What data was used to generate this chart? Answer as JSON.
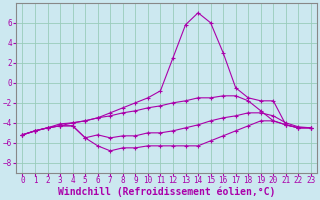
{
  "xlabel": "Windchill (Refroidissement éolien,°C)",
  "bg_color": "#cce8f0",
  "line_color": "#aa00aa",
  "grid_color": "#99ccbb",
  "x": [
    0,
    1,
    2,
    3,
    4,
    5,
    6,
    7,
    8,
    9,
    10,
    11,
    12,
    13,
    14,
    15,
    16,
    17,
    18,
    19,
    20,
    21,
    22,
    23
  ],
  "line1": [
    -5.2,
    -4.8,
    -4.5,
    -4.3,
    -4.3,
    -5.5,
    -6.3,
    -6.8,
    -6.5,
    -6.5,
    -6.3,
    -6.3,
    -6.3,
    -6.3,
    -6.3,
    -5.8,
    -5.3,
    -4.8,
    -4.3,
    -3.8,
    -3.8,
    -4.2,
    -4.5,
    -4.5
  ],
  "line2": [
    -5.2,
    -4.8,
    -4.5,
    -4.1,
    -4.0,
    -3.8,
    -3.5,
    -3.3,
    -3.0,
    -2.8,
    -2.5,
    -2.3,
    -2.0,
    -1.8,
    -1.5,
    -1.5,
    -1.3,
    -1.3,
    -1.8,
    -2.8,
    -3.8,
    -4.2,
    -4.5,
    -4.5
  ],
  "line3": [
    -5.2,
    -4.8,
    -4.5,
    -4.3,
    -4.0,
    -3.8,
    -3.5,
    -3.0,
    -2.5,
    -2.0,
    -1.5,
    -0.8,
    2.5,
    5.8,
    7.0,
    6.0,
    3.0,
    -0.5,
    -1.5,
    -1.8,
    -1.8,
    -4.2,
    -4.5,
    -4.5
  ],
  "line4": [
    -5.2,
    -4.8,
    -4.5,
    -4.3,
    -4.3,
    -5.5,
    -5.2,
    -5.5,
    -5.3,
    -5.3,
    -5.0,
    -5.0,
    -4.8,
    -4.5,
    -4.2,
    -3.8,
    -3.5,
    -3.3,
    -3.0,
    -3.0,
    -3.3,
    -4.0,
    -4.4,
    -4.5
  ],
  "ylim": [
    -9,
    8
  ],
  "xlim": [
    -0.5,
    23.5
  ],
  "yticks": [
    -8,
    -6,
    -4,
    -2,
    0,
    2,
    4,
    6
  ],
  "xticks": [
    0,
    1,
    2,
    3,
    4,
    5,
    6,
    7,
    8,
    9,
    10,
    11,
    12,
    13,
    14,
    15,
    16,
    17,
    18,
    19,
    20,
    21,
    22,
    23
  ],
  "tick_fontsize": 5.5,
  "xlabel_fontsize": 7.0
}
